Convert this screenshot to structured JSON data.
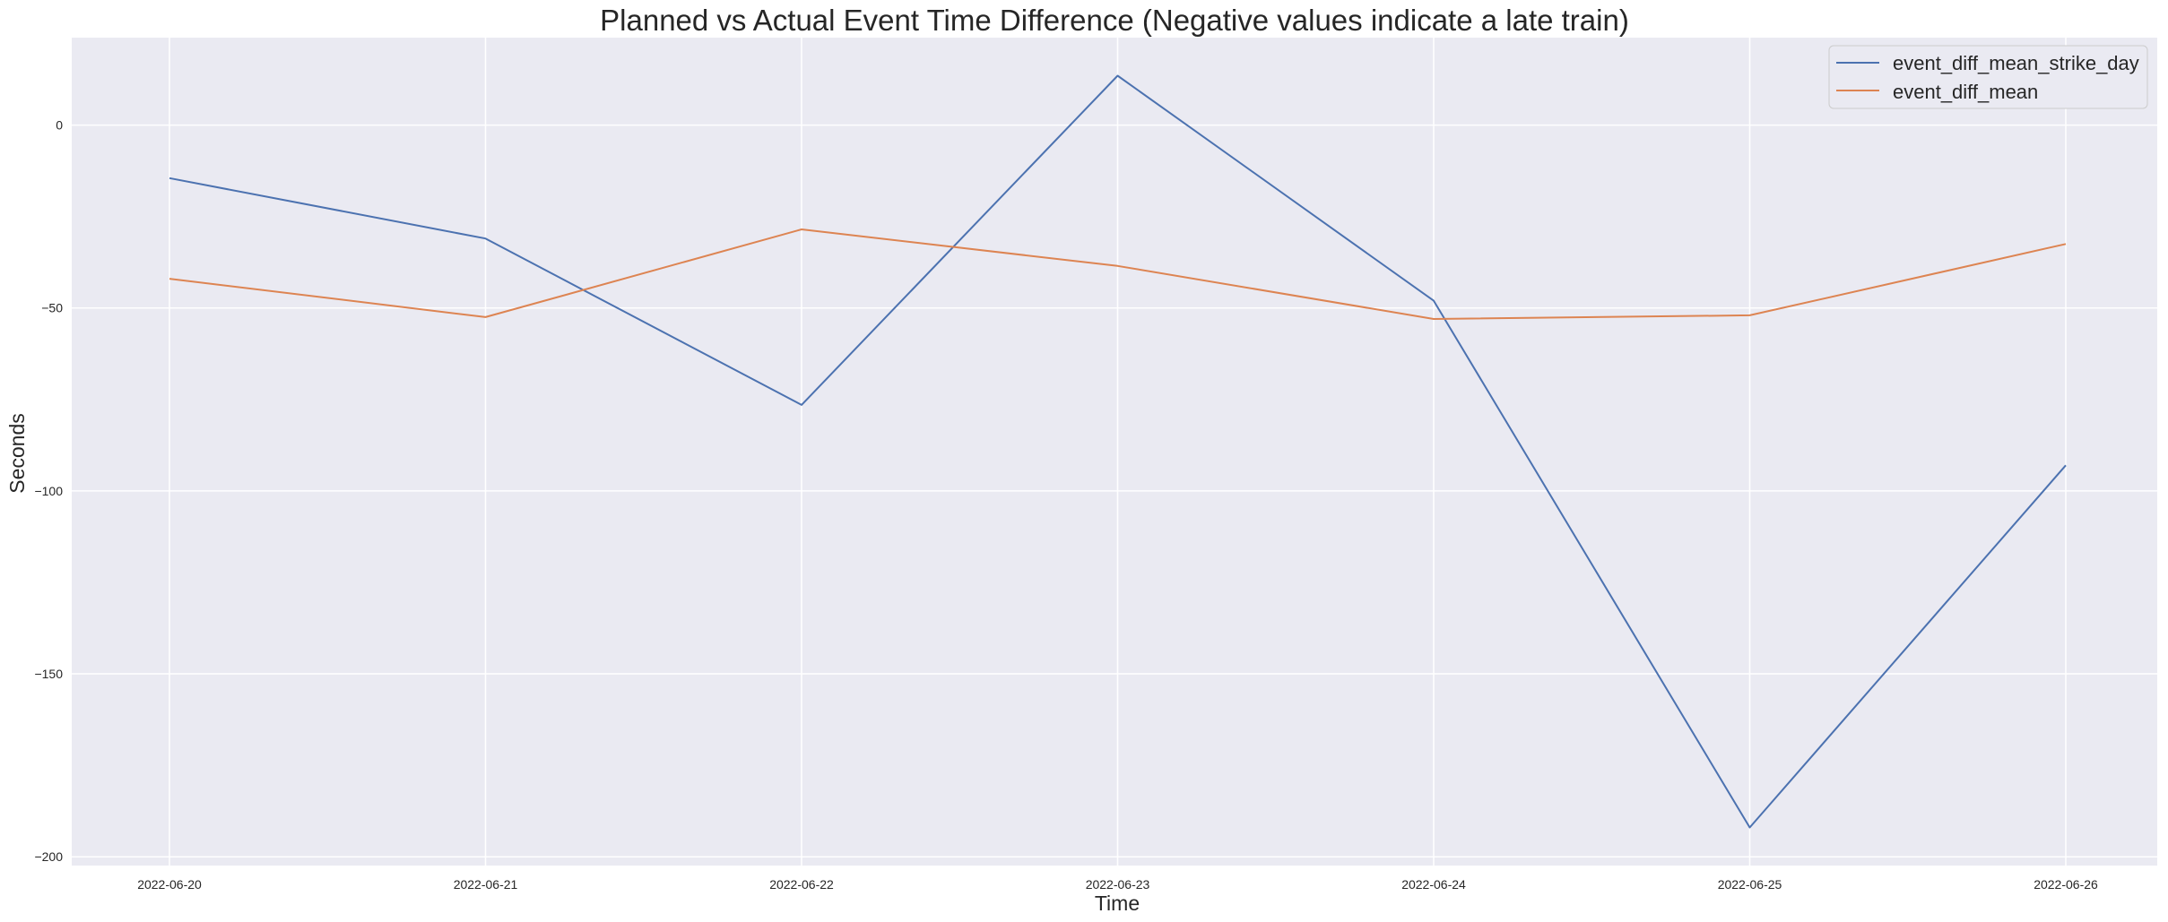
{
  "chart_data": {
    "type": "line",
    "title": "Planned vs Actual Event Time Difference (Negative values indicate a late train)",
    "xlabel": "Time",
    "ylabel": "Seconds",
    "x": [
      "2022-06-20",
      "2022-06-21",
      "2022-06-22",
      "2022-06-23",
      "2022-06-24",
      "2022-06-25",
      "2022-06-26"
    ],
    "series": [
      {
        "name": "event_diff_mean_strike_day",
        "color": "#4c72b0",
        "values": [
          -14.5,
          -31,
          -76.5,
          13.5,
          -48,
          -192,
          -93
        ]
      },
      {
        "name": "event_diff_mean",
        "color": "#dd8452",
        "values": [
          -42,
          -52.5,
          -28.5,
          -38.5,
          -53,
          -52,
          -32.5
        ]
      }
    ],
    "yticks": [
      0,
      -50,
      -100,
      -150,
      -200
    ],
    "ytick_labels": [
      "0",
      "−50",
      "−100",
      "−150",
      "−200"
    ],
    "ylim": [
      -202.4,
      23.9
    ],
    "grid": true,
    "legend_position": "top-right",
    "background_color": "#eaeaf2",
    "grid_color": "#ffffff"
  }
}
